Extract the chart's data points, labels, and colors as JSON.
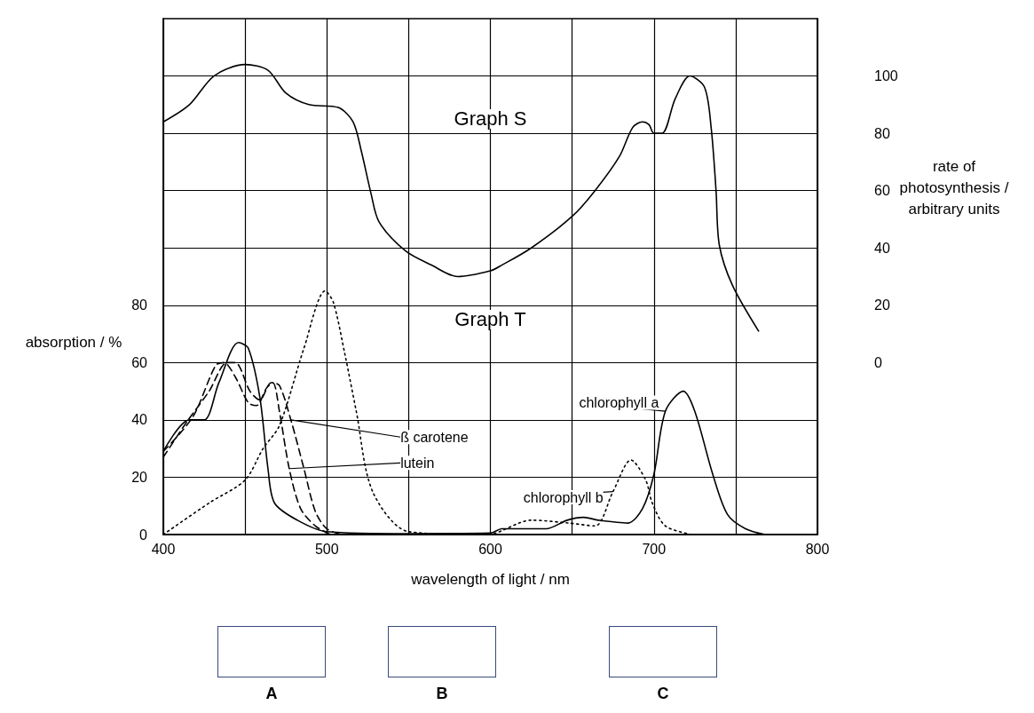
{
  "chart_data": {
    "type": "line",
    "xlabel": "wavelength of light / nm",
    "ylabel": "absorption / %",
    "y2label": "rate of photosynthesis / arbitrary units",
    "xlim": [
      400,
      800
    ],
    "xticks": [
      400,
      {
        "value": 450,
        "label": null
      },
      500,
      {
        "value": 550,
        "label": null
      },
      600,
      {
        "value": 650,
        "label": null
      },
      700,
      {
        "value": 750,
        "label": null
      },
      800
    ],
    "ylim": [
      0,
      180
    ],
    "yticks": [
      0,
      20,
      40,
      60,
      80,
      {
        "value": 100,
        "label": null
      },
      {
        "value": 120,
        "label": null
      },
      {
        "value": 140,
        "label": null
      },
      {
        "value": 160,
        "label": null
      }
    ],
    "y2lim": [
      -60,
      120
    ],
    "y2ticks": [
      0,
      20,
      40,
      60,
      80,
      100
    ],
    "grid": true,
    "marker": "none",
    "annotations": [
      "Graph S",
      "Graph T",
      "A",
      "B",
      "C"
    ],
    "series": [
      {
        "axis": "y2",
        "color": "#000000",
        "line_style": "solid",
        "x": [
          400,
          416,
          431,
          450,
          464,
          475,
          489,
          507,
          516,
          521,
          527,
          532,
          548,
          564,
          580,
          600,
          607,
          625,
          650,
          664,
          679,
          687,
          693,
          697,
          700,
          705,
          713,
          722,
          731,
          735,
          738,
          740,
          748,
          764
        ],
        "values": [
          84,
          90,
          100,
          104,
          102,
          94,
          90,
          89,
          84,
          74,
          59,
          49,
          39,
          34,
          30,
          32,
          34,
          40,
          51,
          60,
          72,
          82,
          84,
          83,
          80,
          80,
          92,
          100,
          96,
          82,
          60,
          41,
          27,
          11
        ]
      },
      {
        "name": "chlorophyll a",
        "color": "#000000",
        "line_style": "solid",
        "x": [
          400,
          416,
          425,
          434,
          446,
          452,
          459,
          464,
          468,
          482,
          500,
          550,
          600,
          607,
          634,
          647,
          657,
          666,
          684,
          693,
          700,
          707,
          718,
          725,
          736,
          745,
          756,
          768
        ],
        "values": [
          29,
          40,
          40,
          53,
          67,
          65,
          48,
          23,
          11,
          5,
          1,
          0.3,
          0.5,
          2,
          2,
          5,
          6,
          5,
          4,
          9,
          21,
          43,
          50,
          43,
          21,
          7,
          2,
          0
        ]
      },
      {
        "name": "chlorophyll b",
        "color": "#000000",
        "line_style": "dotted",
        "x": [
          400,
          428,
          450,
          461,
          471,
          486,
          499,
          504,
          511,
          518,
          528,
          550,
          598,
          625,
          648,
          664,
          675,
          686,
          695,
          699,
          707,
          723
        ],
        "values": [
          0,
          11,
          19,
          30,
          38,
          65,
          85,
          81,
          63,
          43,
          15,
          1,
          0,
          5,
          4,
          3,
          15,
          26,
          19,
          11,
          3,
          0
        ]
      },
      {
        "name": "ß carotene",
        "color": "#000000",
        "line_style": "dashed",
        "x": [
          400,
          414,
          428,
          439,
          444,
          453,
          459,
          466,
          471,
          478,
          486,
          493,
          500,
          509
        ],
        "values": [
          27,
          39,
          50,
          60,
          60,
          50,
          47,
          53,
          52,
          40,
          23,
          8,
          2,
          0
        ]
      },
      {
        "name": "lutein",
        "color": "#000000",
        "line_style": "dashed",
        "x": [
          400,
          418,
          432,
          437,
          444,
          452,
          457,
          463,
          467,
          471,
          477,
          484,
          493,
          502
        ],
        "values": [
          29,
          41,
          59,
          60,
          55,
          46,
          45,
          51,
          53,
          43,
          23,
          9,
          3,
          0
        ]
      }
    ]
  }
}
